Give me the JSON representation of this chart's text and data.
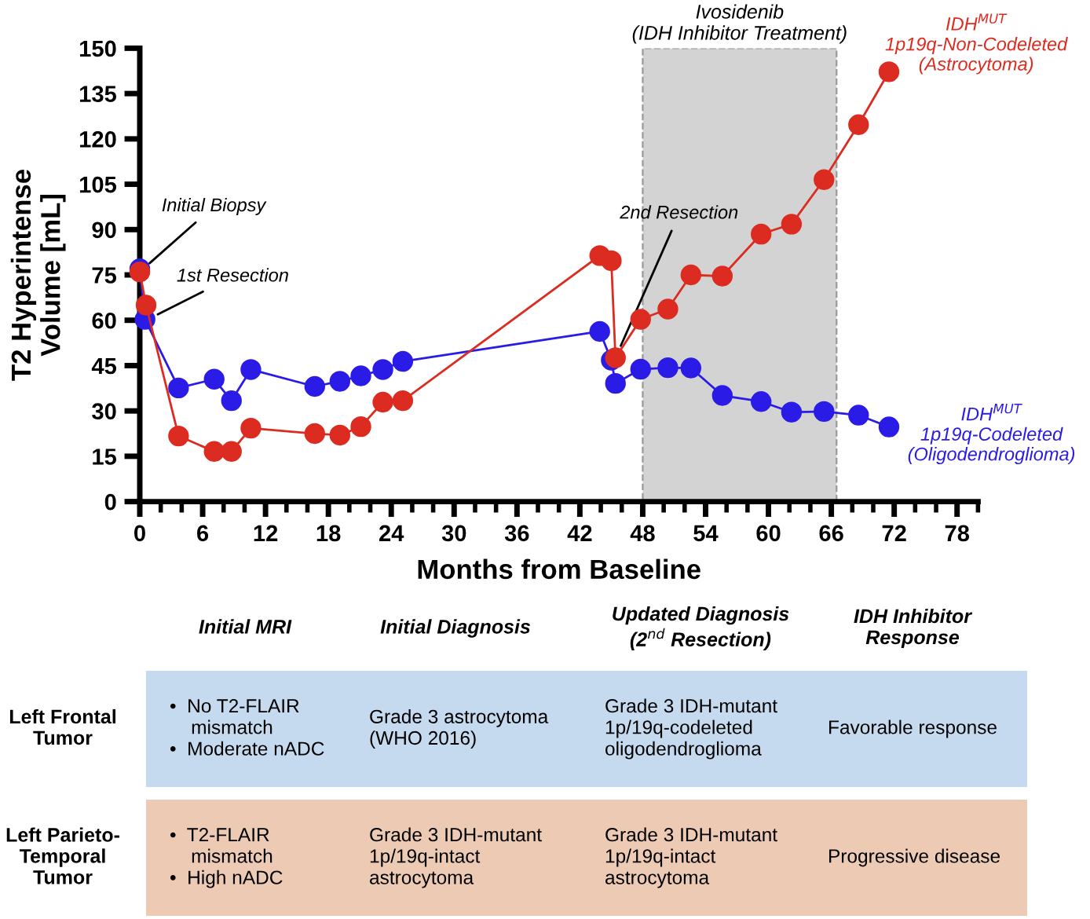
{
  "chart_data": {
    "type": "line",
    "xlabel": "Months from Baseline",
    "ylabel": "T2 Hyperintense\nVolume [mL]",
    "xlim": [
      0,
      80
    ],
    "ylim": [
      0,
      150
    ],
    "xticks": [
      0,
      6,
      12,
      18,
      24,
      30,
      36,
      42,
      48,
      54,
      60,
      66,
      72,
      78
    ],
    "yticks": [
      0,
      15,
      30,
      45,
      60,
      75,
      90,
      105,
      120,
      135,
      150
    ],
    "grid": false,
    "marker": "circle",
    "line_style": "solid",
    "series": [
      {
        "name": "IDH$^{MUT}$\n1p19q-Codeleted\n(Oligodendroglioma)",
        "color": "#2b1be6",
        "x": [
          0,
          0.5,
          3.7,
          7.1,
          8.75,
          10.6,
          16.7,
          19.1,
          21.1,
          23.2,
          25.1,
          43.9,
          45.0,
          45.4,
          47.8,
          50.4,
          52.6,
          55.6,
          59.3,
          62.2,
          65.3,
          68.6,
          71.5
        ],
        "values": [
          77,
          60.3,
          37.6,
          40.5,
          33.4,
          43.7,
          38.1,
          39.8,
          41.6,
          43.7,
          46.4,
          56.3,
          46.8,
          39.1,
          43.8,
          44.3,
          44.2,
          35.1,
          33.1,
          29.6,
          29.8,
          28.6,
          24.7
        ]
      },
      {
        "name": "IDH$^{MUT}$\n1p19q-Non-Codeleted\n(Astrocytoma)",
        "color": "#dc2b20",
        "x": [
          0,
          0.6,
          3.7,
          7.1,
          8.75,
          10.6,
          16.7,
          19.1,
          21.1,
          23.2,
          25.1,
          43.9,
          45.0,
          45.4,
          47.8,
          50.4,
          52.6,
          55.6,
          59.3,
          62.2,
          65.3,
          68.6,
          71.5
        ],
        "values": [
          76,
          65,
          21.7,
          16.6,
          16.6,
          24.3,
          22.5,
          22.0,
          24.8,
          32.9,
          33.4,
          81.4,
          79.7,
          47.6,
          60.3,
          63.7,
          75.0,
          74.6,
          88.5,
          91.8,
          106.5,
          124.7,
          142.2
        ]
      }
    ],
    "bands": [
      {
        "axis": "x",
        "from": 48,
        "to": 66.5,
        "label": "Ivosidenib\n(IDH Inhibitor Treatment)",
        "color": "#d3d3d3"
      }
    ],
    "annotations": [
      {
        "text": "Initial Biopsy",
        "x": 0,
        "y": 76
      },
      {
        "text": "1st Resection",
        "x": 0.6,
        "y": 60
      },
      {
        "text": "2nd Resection",
        "x": 45.4,
        "y": 47.6
      },
      "Initial MRI",
      "Initial Diagnosis",
      "Updated Diagnosis\n(2$^{nd}$ Resection)",
      "IDH Inhibitor\nResponse",
      "Left Frontal\nTumor",
      "•  No T2-FLAIR\n    mismatch\n•  Moderate nADC",
      "Grade 3 astrocytoma\n(WHO 2016)",
      "Grade 3 IDH-mutant\n1p/19q-codeleted\noligodendroglioma",
      "Favorable response",
      "Left Parieto-\nTemporal\nTumor",
      "•  T2-FLAIR\n    mismatch\n•  High nADC",
      "Grade 3 IDH-mutant\n1p/19q-intact\nastrocytoma",
      "Grade 3 IDH-mutant\n1p/19q-intact\nastrocytoma",
      "Progressive disease"
    ]
  }
}
